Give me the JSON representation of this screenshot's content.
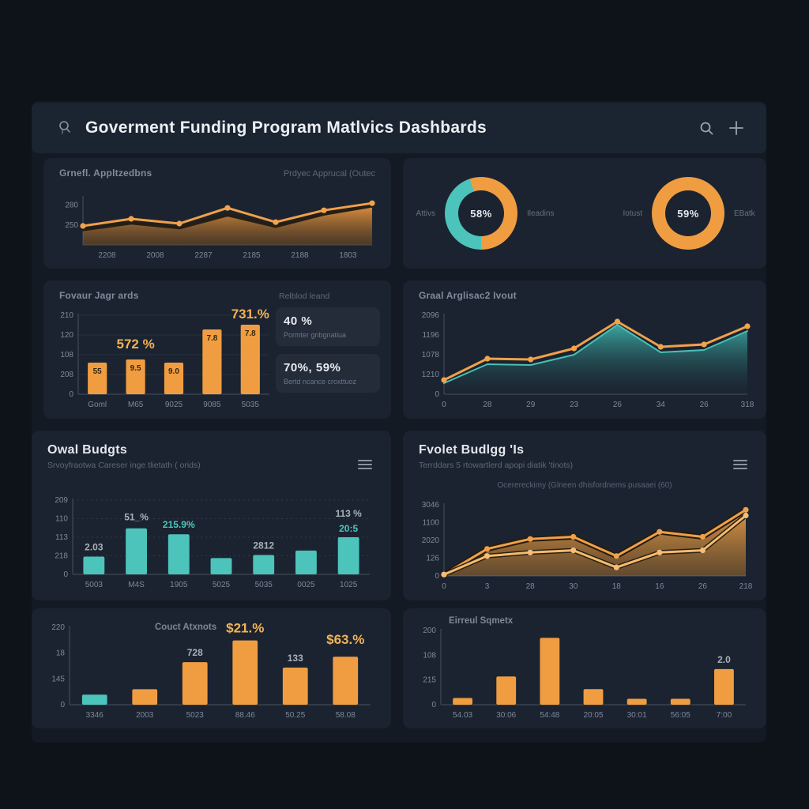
{
  "header": {
    "title": "Goverment Funding Program Matlvics Dashbards",
    "icons": {
      "app": "app-badge-icon",
      "search": "search-icon",
      "add": "plus-icon"
    }
  },
  "theme": {
    "background": "#0e1219",
    "panel": "#141a24",
    "card": "#1b2330",
    "accent_orange": "#f09d42",
    "accent_teal": "#4cc3bb",
    "annotation_yellow": "#f2b356",
    "text_primary": "#e8ebef",
    "text_muted": "#707b8c"
  },
  "cards": [
    {
      "title": "Grnefl. Appltzedbns",
      "title_right": "Prdyec Apprucal (Outec"
    },
    {
      "donut1_left": "Attivs",
      "donut1_right": "Ileadins",
      "donut2_left": "Iotust",
      "donut2_right": "EBatk"
    },
    {
      "title": "Fovaur Jagr ards",
      "side_title": "Relblod leand",
      "stats": [
        {
          "value": "40 %",
          "label": "Pormter gnbgnatiua"
        },
        {
          "value": "70%, 59%",
          "label": "Bertd ncance croxttuoz"
        }
      ]
    },
    {
      "title": "Graal Arglisac2 Ivout"
    },
    {
      "title": "Owal Budgts",
      "subtitle": "Srvoyfraotwa Careser inge tlietath ( orids)"
    },
    {
      "title": "Fvolet Budlgg 'Is",
      "subtitle": "Terrddars 5 rtowartlerd apopi diatik 'tinots)",
      "legend": "Ocerereckimy (Glneen dhisfordnems pusaaei (60)"
    },
    {
      "title": "Couct Atxnots"
    },
    {
      "title": "Eirreul Sqmetx"
    }
  ],
  "chart_data": [
    {
      "type": "line",
      "title": "Grnefl. Appltzedbns",
      "note": "values are percent of plot height, axis ticks garbled in source",
      "yticks": [
        "280",
        "250"
      ],
      "ytick_pos": [
        16,
        58
      ],
      "x": [
        "2208",
        "2008",
        "2287",
        "2185",
        "2188",
        "1803"
      ],
      "x_between": true,
      "pl": 40,
      "ylim": [
        0,
        100
      ],
      "gradients": [
        [
          "#e8963f",
          "#7a4f21",
          0.95,
          0.5
        ]
      ],
      "series": [
        {
          "name": "approval-dark",
          "values": [
            33,
            47,
            37,
            64,
            40,
            66,
            83
          ],
          "fill": 0,
          "stroke": "#241f16",
          "width": 5
        },
        {
          "name": "applications-orange",
          "values": [
            40,
            55,
            45,
            78,
            48,
            73,
            88
          ],
          "stroke": "#f0a04a",
          "width": 3,
          "dots": "#f2a44c"
        }
      ]
    },
    {
      "type": "pie",
      "center": "58%",
      "labels": [
        "Attivs",
        "Ileadins"
      ],
      "segments": [
        {
          "name": "teal",
          "color": "#4cc3bb",
          "value": 45
        },
        {
          "name": "orange",
          "color": "#f09d42",
          "value": 55
        }
      ]
    },
    {
      "type": "pie",
      "center": "59%",
      "labels": [
        "Iotust",
        "EBatk"
      ],
      "segments": [
        {
          "name": "orange",
          "color": "#f09d42",
          "value": 100
        }
      ]
    },
    {
      "type": "bar",
      "title": "Fovaur Jagr ards",
      "yticks": [
        "210",
        "120",
        "108",
        "208",
        "0"
      ],
      "x": [
        "Goml",
        "M65",
        "9025",
        "9085",
        "5035"
      ],
      "values": [
        40,
        44,
        40,
        82,
        88
      ],
      "ylim": [
        0,
        100
      ],
      "bar_labels": [
        "55",
        "9.5",
        "9.0",
        "7.8",
        "7.8"
      ],
      "color": "#f09d42",
      "pl": 36,
      "pt": 16,
      "grid": "line",
      "annotations": [
        {
          "i": 1,
          "text": "572 %",
          "dy": -14,
          "cls": "ann"
        },
        {
          "i": 4,
          "text": "731.%",
          "dy": -8,
          "cls": "ann"
        }
      ]
    },
    {
      "type": "area",
      "title": "Graal Arglisac2 Ivout",
      "yticks": [
        "2096",
        "1196",
        "1078",
        "1210",
        "0"
      ],
      "x": [
        "0",
        "28",
        "29",
        "23",
        "26",
        "34",
        "26",
        "318"
      ],
      "pl": 42,
      "ylim": [
        0,
        100
      ],
      "gradients": [
        [
          "#3eb6ae",
          "#1b2f38",
          0.9,
          0.15
        ]
      ],
      "series": [
        {
          "name": "applicants-area-teal",
          "values": [
            14,
            38,
            37,
            50,
            88,
            53,
            56,
            80
          ],
          "fill": 0,
          "stroke": "#46c0b8",
          "width": 2
        },
        {
          "name": "input-line-orange",
          "values": [
            18,
            45,
            44,
            58,
            92,
            60,
            63,
            86
          ],
          "stroke": "#f0a04a",
          "width": 3,
          "dots": "#f2a44c"
        }
      ]
    },
    {
      "type": "bar",
      "title": "Owal Budgts",
      "yticks": [
        "209",
        "110",
        "113",
        "218",
        "0"
      ],
      "x": [
        "5003",
        "M4S",
        "1905",
        "5025",
        "5035",
        "0025",
        "1025"
      ],
      "values": [
        24,
        62,
        54,
        22,
        26,
        32,
        50
      ],
      "ylim": [
        0,
        100
      ],
      "color": "#4cc3bb",
      "pl": 38,
      "pt": 14,
      "grid": "dot",
      "annotations": [
        {
          "i": 0,
          "text": "2.03",
          "dy": -8,
          "cls": "ann2"
        },
        {
          "i": 1,
          "text": "51_%",
          "dy": -10,
          "cls": "ann2"
        },
        {
          "i": 2,
          "text": "215.9%",
          "dy": -8,
          "cls": "annteal"
        },
        {
          "i": 4,
          "text": "2812",
          "dy": -8,
          "cls": "ann2"
        },
        {
          "i": 6,
          "text": "113 %",
          "dy": -26,
          "cls": "ann2"
        },
        {
          "i": 6,
          "text": "20:5",
          "dy": -7,
          "cls": "annteal"
        }
      ]
    },
    {
      "type": "area",
      "title": "Fvolet Budlgg 'Is",
      "yticks": [
        "3046",
        "1100",
        "2020",
        "126",
        "0"
      ],
      "x": [
        "0",
        "3",
        "28",
        "30",
        "18",
        "16",
        "26",
        "218"
      ],
      "pl": 40,
      "ylim": [
        0,
        100
      ],
      "gradients": [
        [
          "#f2a54b",
          "#b97a2e",
          0.9,
          0.45
        ]
      ],
      "series": [
        {
          "name": "budget-upper-halo",
          "values": [
            2,
            38,
            52,
            55,
            28,
            62,
            55,
            93
          ],
          "fill": 0,
          "stroke": "#241c10",
          "width": 7
        },
        {
          "name": "budget-upper",
          "values": [
            2,
            38,
            52,
            55,
            28,
            62,
            55,
            93
          ],
          "stroke": "#f0a04a",
          "width": 3,
          "dots": "#f0a04a"
        },
        {
          "name": "budget-lower-halo",
          "values": [
            2,
            28,
            33,
            36,
            12,
            33,
            36,
            85
          ],
          "stroke": "#2a2012",
          "width": 6
        },
        {
          "name": "budget-lower",
          "values": [
            2,
            28,
            33,
            36,
            12,
            33,
            36,
            85
          ],
          "stroke": "#f5bb6e",
          "width": 3,
          "dots": "#f6bd76"
        }
      ]
    },
    {
      "type": "bar",
      "title": "Couct Atxnots",
      "yticks": [
        "220",
        "18",
        "145",
        "0"
      ],
      "x": [
        "3346",
        "2003",
        "5023",
        "88.46",
        "50.25",
        "58.08"
      ],
      "values": [
        13,
        20,
        55,
        83,
        48,
        62
      ],
      "ylim": [
        0,
        100
      ],
      "color": "#f09d42",
      "colors": [
        "#4cc3bb",
        "#f09d42",
        "#f09d42",
        "#f09d42",
        "#f09d42",
        "#f09d42"
      ],
      "pl": 36,
      "pt": 6,
      "annotations": [
        {
          "i": 2,
          "text": "728",
          "dy": -8,
          "cls": "ann2"
        },
        {
          "i": 3,
          "text": "$21.%",
          "dy": -10,
          "cls": "ann"
        },
        {
          "i": 4,
          "text": "133",
          "dy": -8,
          "cls": "ann2"
        },
        {
          "i": 5,
          "text": "$63.%",
          "dy": -16,
          "cls": "ann"
        }
      ]
    },
    {
      "type": "bar",
      "title": "Eirreul Sqmetx",
      "yticks": [
        "200",
        "108",
        "215",
        "0"
      ],
      "x": [
        "54.03",
        "30:06",
        "54:48",
        "20:05",
        "30:01",
        "56:05",
        "7:00"
      ],
      "values": [
        9,
        38,
        90,
        21,
        8,
        8,
        48
      ],
      "ylim": [
        0,
        100
      ],
      "color": "#f09d42",
      "pl": 36,
      "pt": 6,
      "bar_ratio": 0.45,
      "annotations": [
        {
          "i": 6,
          "text": "2.0",
          "dy": -8,
          "cls": "ann2"
        }
      ]
    }
  ]
}
